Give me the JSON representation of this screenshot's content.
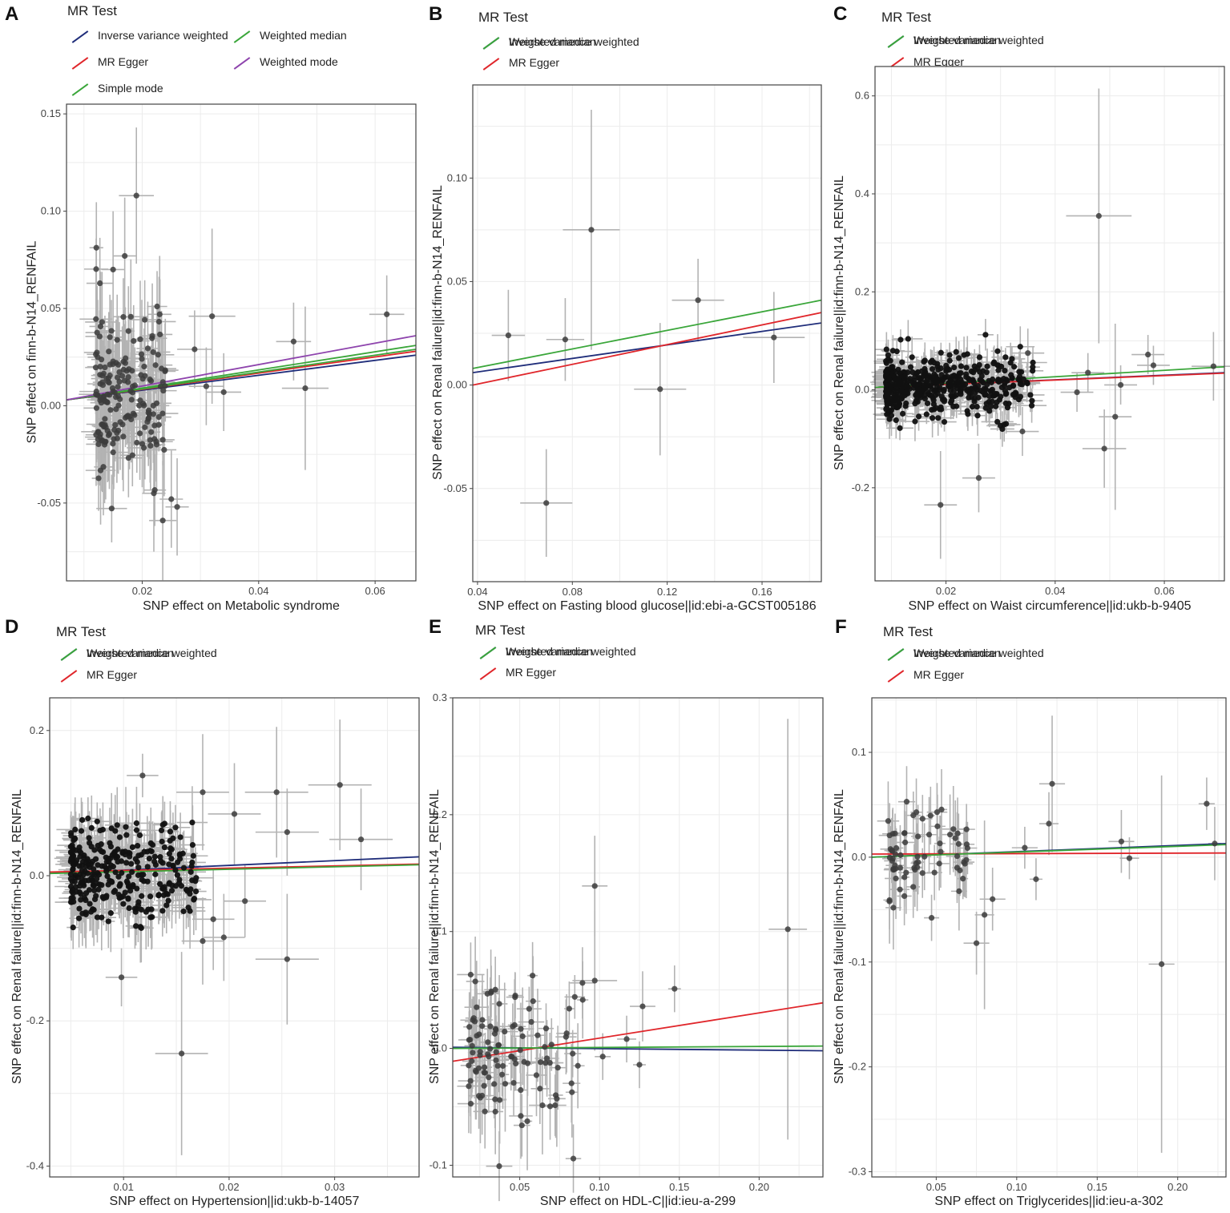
{
  "legend_title": "MR Test",
  "colors": {
    "Inverse variance weighted": "#1f2d7a",
    "MR Egger": "#e0262b",
    "Weighted median": "#3aa63a",
    "Weighted mode": "#8e44ad",
    "Simple mode": "#3aa63a",
    "point": "#3c3c3c",
    "errorbar": "#b3b3b3",
    "grid": "#ececec"
  },
  "chart_data": [
    {
      "id": "A",
      "panel_label": "A",
      "type": "scatter",
      "xlabel": "SNP effect on Metabolic syndrome",
      "ylabel": "SNP effect on finn-b-N14_RENFAIL",
      "xlim": [
        0.007,
        0.067
      ],
      "ylim": [
        -0.09,
        0.155
      ],
      "xticks": [
        0.02,
        0.04,
        0.06
      ],
      "xtick_labels": [
        "0.02",
        "0.04",
        "0.06"
      ],
      "yticks": [
        -0.05,
        0,
        0.05,
        0.1,
        0.15
      ],
      "ytick_labels": [
        "-0.05",
        "0.00",
        "0.05",
        "0.10",
        "0.15"
      ],
      "legend": [
        "Inverse variance weighted",
        "MR Egger",
        "Simple mode",
        "Weighted median",
        "Weighted mode"
      ],
      "lines": [
        {
          "method": "Inverse variance weighted",
          "y0": 0.003,
          "y1": 0.026
        },
        {
          "method": "MR Egger",
          "y0": 0.003,
          "y1": 0.028
        },
        {
          "method": "Simple mode",
          "y0": 0.003,
          "y1": 0.029
        },
        {
          "method": "Weighted median",
          "y0": 0.003,
          "y1": 0.031
        },
        {
          "method": "Weighted mode",
          "y0": 0.003,
          "y1": 0.036
        }
      ],
      "points": [
        {
          "x": 0.019,
          "y": 0.108,
          "xe": 0.003,
          "ye": 0.035
        },
        {
          "x": 0.017,
          "y": 0.077,
          "xe": 0.002,
          "ye": 0.03
        },
        {
          "x": 0.015,
          "y": 0.07,
          "xe": 0.002,
          "ye": 0.03
        },
        {
          "x": 0.062,
          "y": 0.047,
          "xe": 0.003,
          "ye": 0.02
        },
        {
          "x": 0.046,
          "y": 0.033,
          "xe": 0.003,
          "ye": 0.02
        },
        {
          "x": 0.032,
          "y": 0.046,
          "xe": 0.004,
          "ye": 0.045
        },
        {
          "x": 0.048,
          "y": 0.009,
          "xe": 0.004,
          "ye": 0.042
        },
        {
          "x": 0.034,
          "y": 0.007,
          "xe": 0.003,
          "ye": 0.02
        },
        {
          "x": 0.031,
          "y": 0.01,
          "xe": 0.003,
          "ye": 0.02
        },
        {
          "x": 0.029,
          "y": 0.029,
          "xe": 0.003,
          "ye": 0.02
        },
        {
          "x": 0.026,
          "y": -0.052,
          "xe": 0.002,
          "ye": 0.025
        },
        {
          "x": 0.025,
          "y": -0.048,
          "xe": 0.002,
          "ye": 0.025
        },
        {
          "x": 0.023,
          "y": 0.047,
          "xe": 0.002,
          "ye": 0.03
        },
        {
          "x": 0.022,
          "y": -0.045,
          "xe": 0.002,
          "ye": 0.03
        }
      ],
      "cluster": {
        "x_min": 0.012,
        "x_max": 0.024,
        "y_mean": 0.003,
        "y_sd": 0.022,
        "n": 190,
        "xe": 0.002,
        "ye": 0.022,
        "seed": 11
      }
    },
    {
      "id": "B",
      "panel_label": "B",
      "type": "scatter",
      "xlabel": "SNP effect on Fasting blood glucose||id:ebi-a-GCST005186",
      "ylabel": "SNP effect on Renal failure||id:finn-b-N14_RENFAIL",
      "xlim": [
        0.038,
        0.185
      ],
      "ylim": [
        -0.095,
        0.145
      ],
      "xticks": [
        0.04,
        0.08,
        0.12,
        0.16
      ],
      "xtick_labels": [
        "0.04",
        "0.08",
        "0.12",
        "0.16"
      ],
      "yticks": [
        -0.05,
        0,
        0.05,
        0.1
      ],
      "ytick_labels": [
        "-0.05",
        "0.00",
        "0.05",
        "0.10"
      ],
      "legend": [
        "Inverse variance weighted",
        "MR Egger",
        "Weighted median"
      ],
      "lines": [
        {
          "method": "Inverse variance weighted",
          "y0": 0.006,
          "y1": 0.03
        },
        {
          "method": "MR Egger",
          "y0": 0.0,
          "y1": 0.035
        },
        {
          "method": "Weighted median",
          "y0": 0.008,
          "y1": 0.041
        }
      ],
      "points": [
        {
          "x": 0.088,
          "y": 0.075,
          "xe": 0.012,
          "ye": 0.058
        },
        {
          "x": 0.053,
          "y": 0.024,
          "xe": 0.007,
          "ye": 0.022
        },
        {
          "x": 0.077,
          "y": 0.022,
          "xe": 0.008,
          "ye": 0.02
        },
        {
          "x": 0.069,
          "y": -0.057,
          "xe": 0.011,
          "ye": 0.026
        },
        {
          "x": 0.133,
          "y": 0.041,
          "xe": 0.011,
          "ye": 0.02
        },
        {
          "x": 0.117,
          "y": -0.002,
          "xe": 0.011,
          "ye": 0.032
        },
        {
          "x": 0.165,
          "y": 0.023,
          "xe": 0.013,
          "ye": 0.022
        }
      ]
    },
    {
      "id": "C",
      "panel_label": "C",
      "type": "scatter",
      "xlabel": "SNP effect on Waist circumference||id:ukb-b-9405",
      "ylabel": "SNP effect on Renal failure||id:finn-b-N14_RENFAIL",
      "xlim": [
        0.007,
        0.071
      ],
      "ylim": [
        -0.39,
        0.66
      ],
      "xticks": [
        0.02,
        0.04,
        0.06
      ],
      "xtick_labels": [
        "0.02",
        "0.04",
        "0.06"
      ],
      "yticks": [
        -0.2,
        0,
        0.2,
        0.4,
        0.6
      ],
      "ytick_labels": [
        "-0.2",
        "0.0",
        "0.2",
        "0.4",
        "0.6"
      ],
      "legend": [
        "Inverse variance weighted",
        "MR Egger",
        "Weighted median"
      ],
      "lines": [
        {
          "method": "Inverse variance weighted",
          "y0": 0.005,
          "y1": 0.035
        },
        {
          "method": "MR Egger",
          "y0": 0.005,
          "y1": 0.034
        },
        {
          "method": "Weighted median",
          "y0": 0.005,
          "y1": 0.047
        }
      ],
      "points": [
        {
          "x": 0.048,
          "y": 0.355,
          "xe": 0.006,
          "ye": 0.26
        },
        {
          "x": 0.019,
          "y": -0.235,
          "xe": 0.003,
          "ye": 0.11
        },
        {
          "x": 0.026,
          "y": -0.18,
          "xe": 0.003,
          "ye": 0.07
        },
        {
          "x": 0.049,
          "y": -0.12,
          "xe": 0.004,
          "ye": 0.08
        },
        {
          "x": 0.051,
          "y": -0.055,
          "xe": 0.003,
          "ye": 0.19
        },
        {
          "x": 0.069,
          "y": 0.048,
          "xe": 0.004,
          "ye": 0.07
        },
        {
          "x": 0.057,
          "y": 0.072,
          "xe": 0.003,
          "ye": 0.04
        },
        {
          "x": 0.058,
          "y": 0.05,
          "xe": 0.003,
          "ye": 0.04
        },
        {
          "x": 0.052,
          "y": 0.01,
          "xe": 0.003,
          "ye": 0.04
        },
        {
          "x": 0.044,
          "y": -0.005,
          "xe": 0.003,
          "ye": 0.04
        },
        {
          "x": 0.046,
          "y": 0.035,
          "xe": 0.003,
          "ye": 0.04
        },
        {
          "x": 0.035,
          "y": 0.075,
          "xe": 0.003,
          "ye": 0.05
        },
        {
          "x": 0.034,
          "y": -0.085,
          "xe": 0.003,
          "ye": 0.05
        }
      ],
      "cluster": {
        "x_min": 0.009,
        "x_max": 0.036,
        "y_mean": 0.01,
        "y_sd": 0.03,
        "n": 520,
        "xe": 0.002,
        "ye": 0.03,
        "seed": 23,
        "dense": true
      }
    },
    {
      "id": "D",
      "panel_label": "D",
      "type": "scatter",
      "xlabel": "SNP effect on Hypertension||id:ukb-b-14057",
      "ylabel": "SNP effect on Renal failure||id:finn-b-N14_RENFAIL",
      "xlim": [
        0.003,
        0.038
      ],
      "ylim": [
        -0.415,
        0.245
      ],
      "xticks": [
        0.01,
        0.02,
        0.03
      ],
      "xtick_labels": [
        "0.01",
        "0.02",
        "0.03"
      ],
      "yticks": [
        -0.4,
        -0.2,
        0,
        0.2
      ],
      "ytick_labels": [
        "-0.4",
        "-0.2",
        "0.0",
        "0.2"
      ],
      "legend": [
        "Inverse variance weighted",
        "MR Egger",
        "Weighted median"
      ],
      "lines": [
        {
          "method": "Inverse variance weighted",
          "y0": 0.003,
          "y1": 0.026
        },
        {
          "method": "MR Egger",
          "y0": 0.005,
          "y1": 0.016
        },
        {
          "method": "Weighted median",
          "y0": 0.003,
          "y1": 0.015
        }
      ],
      "points": [
        {
          "x": 0.0155,
          "y": -0.245,
          "xe": 0.0025,
          "ye": 0.14
        },
        {
          "x": 0.0098,
          "y": -0.14,
          "xe": 0.0015,
          "ye": 0.04
        },
        {
          "x": 0.0255,
          "y": -0.115,
          "xe": 0.003,
          "ye": 0.09
        },
        {
          "x": 0.0305,
          "y": 0.125,
          "xe": 0.003,
          "ye": 0.09
        },
        {
          "x": 0.0325,
          "y": 0.05,
          "xe": 0.003,
          "ye": 0.07
        },
        {
          "x": 0.0245,
          "y": 0.115,
          "xe": 0.003,
          "ye": 0.09
        },
        {
          "x": 0.0255,
          "y": 0.06,
          "xe": 0.003,
          "ye": 0.06
        },
        {
          "x": 0.0205,
          "y": 0.085,
          "xe": 0.0025,
          "ye": 0.07
        },
        {
          "x": 0.0175,
          "y": 0.115,
          "xe": 0.0025,
          "ye": 0.08
        },
        {
          "x": 0.0185,
          "y": -0.06,
          "xe": 0.002,
          "ye": 0.07
        },
        {
          "x": 0.0195,
          "y": -0.085,
          "xe": 0.002,
          "ye": 0.06
        },
        {
          "x": 0.0215,
          "y": -0.035,
          "xe": 0.002,
          "ye": 0.05
        },
        {
          "x": 0.0175,
          "y": -0.09,
          "xe": 0.002,
          "ye": 0.06
        },
        {
          "x": 0.0118,
          "y": 0.138,
          "xe": 0.0015,
          "ye": 0.03
        }
      ],
      "cluster": {
        "x_min": 0.005,
        "x_max": 0.017,
        "y_mean": 0.0,
        "y_sd": 0.035,
        "n": 320,
        "xe": 0.0012,
        "ye": 0.04,
        "seed": 37,
        "dense": true
      }
    },
    {
      "id": "E",
      "panel_label": "E",
      "type": "scatter",
      "xlabel": "SNP effect on HDL-C||id:ieu-a-299",
      "ylabel": "SNP effect on Renal failure||id:finn-b-N14_RENFAIL",
      "xlim": [
        0.008,
        0.24
      ],
      "ylim": [
        -0.11,
        0.3
      ],
      "xticks": [
        0.05,
        0.1,
        0.15,
        0.2
      ],
      "xtick_labels": [
        "0.05",
        "0.10",
        "0.15",
        "0.20"
      ],
      "yticks": [
        -0.1,
        0,
        0.1,
        0.2,
        0.3
      ],
      "ytick_labels": [
        "-0.1",
        "0.0",
        "0.1",
        "0.2",
        "0.3"
      ],
      "legend": [
        "Inverse variance weighted",
        "MR Egger",
        "Weighted median"
      ],
      "lines": [
        {
          "method": "Inverse variance weighted",
          "y0": 0.001,
          "y1": -0.002
        },
        {
          "method": "MR Egger",
          "y0": -0.011,
          "y1": 0.039
        },
        {
          "method": "Weighted median",
          "y0": 0.0,
          "y1": 0.002
        }
      ],
      "points": [
        {
          "x": 0.218,
          "y": 0.102,
          "xe": 0.012,
          "ye": 0.18
        },
        {
          "x": 0.097,
          "y": 0.139,
          "xe": 0.008,
          "ye": 0.043
        },
        {
          "x": 0.147,
          "y": 0.051,
          "xe": 0.004,
          "ye": 0.02
        },
        {
          "x": 0.127,
          "y": 0.036,
          "xe": 0.008,
          "ye": 0.03
        },
        {
          "x": 0.097,
          "y": 0.058,
          "xe": 0.014,
          "ye": 0.06
        },
        {
          "x": 0.117,
          "y": 0.008,
          "xe": 0.006,
          "ye": 0.02
        },
        {
          "x": 0.125,
          "y": -0.014,
          "xe": 0.004,
          "ye": 0.02
        },
        {
          "x": 0.102,
          "y": -0.007,
          "xe": 0.005,
          "ye": 0.02
        }
      ],
      "cluster": {
        "x_min": 0.018,
        "x_max": 0.09,
        "y_mean": -0.005,
        "y_sd": 0.03,
        "n": 110,
        "xe": 0.006,
        "ye": 0.03,
        "seed": 51
      }
    },
    {
      "id": "F",
      "panel_label": "F",
      "type": "scatter",
      "xlabel": "SNP effect on Triglycerides||id:ieu-a-302",
      "ylabel": "SNP effect on Renal failure||id:finn-b-N14_RENFAIL",
      "xlim": [
        0.01,
        0.23
      ],
      "ylim": [
        -0.305,
        0.152
      ],
      "xticks": [
        0.05,
        0.1,
        0.15,
        0.2
      ],
      "xtick_labels": [
        "0.05",
        "0.10",
        "0.15",
        "0.20"
      ],
      "yticks": [
        -0.3,
        -0.2,
        -0.1,
        0,
        0.1
      ],
      "ytick_labels": [
        "-0.3",
        "-0.2",
        "-0.1",
        "0.0",
        "0.1"
      ],
      "legend": [
        "Inverse variance weighted",
        "MR Egger",
        "Weighted median"
      ],
      "lines": [
        {
          "method": "Inverse variance weighted",
          "y0": 0.0,
          "y1": 0.013
        },
        {
          "method": "MR Egger",
          "y0": 0.003,
          "y1": 0.004
        },
        {
          "method": "Weighted median",
          "y0": 0.0,
          "y1": 0.012
        }
      ],
      "points": [
        {
          "x": 0.19,
          "y": -0.102,
          "xe": 0.008,
          "ye": 0.18
        },
        {
          "x": 0.122,
          "y": 0.07,
          "xe": 0.008,
          "ye": 0.065
        },
        {
          "x": 0.218,
          "y": 0.051,
          "xe": 0.005,
          "ye": 0.025
        },
        {
          "x": 0.223,
          "y": 0.013,
          "xe": 0.004,
          "ye": 0.035
        },
        {
          "x": 0.165,
          "y": 0.015,
          "xe": 0.008,
          "ye": 0.03
        },
        {
          "x": 0.17,
          "y": -0.001,
          "xe": 0.006,
          "ye": 0.02
        },
        {
          "x": 0.12,
          "y": 0.032,
          "xe": 0.006,
          "ye": 0.03
        },
        {
          "x": 0.112,
          "y": -0.021,
          "xe": 0.004,
          "ye": 0.02
        },
        {
          "x": 0.105,
          "y": 0.009,
          "xe": 0.008,
          "ye": 0.02
        },
        {
          "x": 0.075,
          "y": -0.082,
          "xe": 0.008,
          "ye": 0.03
        },
        {
          "x": 0.08,
          "y": -0.055,
          "xe": 0.006,
          "ye": 0.09
        },
        {
          "x": 0.085,
          "y": -0.04,
          "xe": 0.008,
          "ye": 0.03
        }
      ],
      "cluster": {
        "x_min": 0.02,
        "x_max": 0.07,
        "y_mean": 0.005,
        "y_sd": 0.025,
        "n": 70,
        "xe": 0.005,
        "ye": 0.03,
        "seed": 73
      }
    }
  ]
}
